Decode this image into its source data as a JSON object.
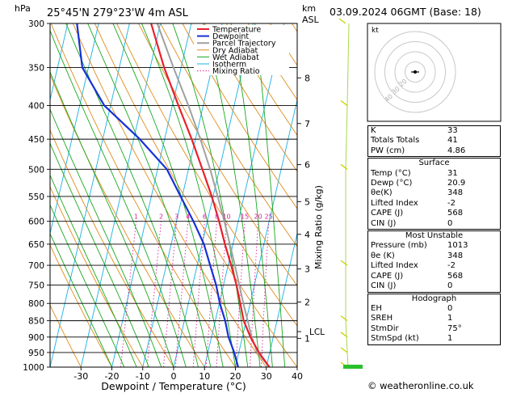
{
  "header": {
    "hpa_label": "hPa",
    "location": "25°45'N  279°23'W  4m  ASL",
    "km_label": "km",
    "asl_label": "ASL",
    "date": "03.09.2024  06GMT  (Base: 18)"
  },
  "chart_data": {
    "type": "skew-t",
    "xlabel": "Dewpoint / Temperature (°C)",
    "ylabel": "Mixing Ratio (g/kg)",
    "pressure_levels": [
      300,
      350,
      400,
      450,
      500,
      550,
      600,
      650,
      700,
      750,
      800,
      850,
      900,
      950,
      1000
    ],
    "temperature_ticks": [
      -30,
      -20,
      -10,
      0,
      10,
      20,
      30,
      40
    ],
    "km_ticks": [
      {
        "label": "8",
        "p": 363
      },
      {
        "label": "7",
        "p": 426
      },
      {
        "label": "6",
        "p": 492
      },
      {
        "label": "5",
        "p": 560
      },
      {
        "label": "4",
        "p": 628
      },
      {
        "label": "3",
        "p": 709
      },
      {
        "label": "2",
        "p": 796
      },
      {
        "label": "1",
        "p": 904
      }
    ],
    "lcl": {
      "label": "LCL",
      "p": 883
    },
    "mixing_ratio_labels": [
      "1",
      "2",
      "3",
      "4",
      "6",
      "8",
      "10",
      "15",
      "20",
      "25"
    ],
    "legend": [
      "Temperature",
      "Dewpoint",
      "Parcel Trajectory",
      "Dry Adiabat",
      "Wet Adiabat",
      "Isotherm",
      "Mixing Ratio"
    ],
    "colors": {
      "temperature": "#e8202a",
      "dewpoint": "#1730d6",
      "parcel": "#a0a0a0",
      "dry_adiabat": "#e08c1c",
      "wet_adiabat": "#18a81e",
      "isotherm": "#19b0e4",
      "mixing_ratio": "#e01c9a"
    },
    "series": [
      {
        "name": "Temperature",
        "points": [
          [
            1000,
            31
          ],
          [
            950,
            26.5
          ],
          [
            900,
            22.6
          ],
          [
            850,
            19.2
          ],
          [
            800,
            16.8
          ],
          [
            750,
            14.2
          ],
          [
            700,
            11
          ],
          [
            650,
            7.4
          ],
          [
            600,
            3.8
          ],
          [
            550,
            -0.4
          ],
          [
            500,
            -5.5
          ],
          [
            450,
            -11.2
          ],
          [
            400,
            -18
          ],
          [
            350,
            -25.5
          ],
          [
            300,
            -33
          ]
        ]
      },
      {
        "name": "Dewpoint",
        "points": [
          [
            1000,
            20.9
          ],
          [
            950,
            18.5
          ],
          [
            900,
            15.5
          ],
          [
            850,
            13.2
          ],
          [
            800,
            10.2
          ],
          [
            750,
            7.6
          ],
          [
            700,
            4.2
          ],
          [
            650,
            0.6
          ],
          [
            600,
            -4.5
          ],
          [
            550,
            -10.5
          ],
          [
            500,
            -17
          ],
          [
            450,
            -28
          ],
          [
            400,
            -42
          ],
          [
            350,
            -52
          ],
          [
            300,
            -57
          ]
        ]
      },
      {
        "name": "Parcel Trajectory",
        "points": [
          [
            1000,
            31
          ],
          [
            950,
            26
          ],
          [
            900,
            23
          ],
          [
            850,
            20.5
          ],
          [
            800,
            17.8
          ],
          [
            750,
            15.1
          ],
          [
            700,
            12.2
          ],
          [
            650,
            9
          ],
          [
            600,
            5.5
          ],
          [
            550,
            1.5
          ],
          [
            500,
            -3
          ],
          [
            450,
            -8.4
          ],
          [
            400,
            -14.8
          ],
          [
            350,
            -22.5
          ],
          [
            300,
            -31
          ]
        ]
      }
    ]
  },
  "hodograph": {
    "label": "kt",
    "ring_labels": [
      "20",
      "30",
      "40"
    ]
  },
  "indices": {
    "rows": [
      {
        "label": "K",
        "value": "33"
      },
      {
        "label": "Totals Totals",
        "value": "41"
      },
      {
        "label": "PW (cm)",
        "value": "4.86"
      }
    ]
  },
  "surface": {
    "title": "Surface",
    "rows": [
      {
        "label": "Temp (°C)",
        "value": "31"
      },
      {
        "label": "Dewp (°C)",
        "value": "20.9"
      },
      {
        "label": "θe(K)",
        "value": "348"
      },
      {
        "label": "Lifted Index",
        "value": "-2"
      },
      {
        "label": "CAPE (J)",
        "value": "568"
      },
      {
        "label": "CIN (J)",
        "value": "0"
      }
    ]
  },
  "most_unstable": {
    "title": "Most Unstable",
    "rows": [
      {
        "label": "Pressure (mb)",
        "value": "1013"
      },
      {
        "label": "θe (K)",
        "value": "348"
      },
      {
        "label": "Lifted Index",
        "value": "-2"
      },
      {
        "label": "CAPE (J)",
        "value": "568"
      },
      {
        "label": "CIN (J)",
        "value": "0"
      }
    ]
  },
  "hodograph_table": {
    "title": "Hodograph",
    "rows": [
      {
        "label": "EH",
        "value": "0"
      },
      {
        "label": "SREH",
        "value": "1"
      },
      {
        "label": "StmDir",
        "value": "75°"
      },
      {
        "label": "StmSpd (kt)",
        "value": "1"
      }
    ]
  },
  "footer": {
    "copyright": "© weatheronline.co.uk"
  }
}
